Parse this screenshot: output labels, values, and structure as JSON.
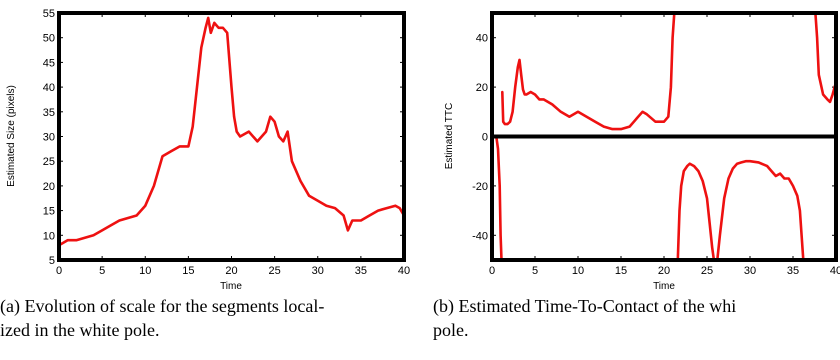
{
  "chart_data": [
    {
      "type": "line",
      "xlabel": "Time",
      "ylabel": "Estimated Size (pixels)",
      "xlim": [
        0,
        40
      ],
      "ylim": [
        5,
        55
      ],
      "xticks": [
        "0",
        "5",
        "10",
        "15",
        "20",
        "25",
        "30",
        "35",
        "40"
      ],
      "yticks": [
        "5",
        "10",
        "15",
        "20",
        "25",
        "30",
        "35",
        "40",
        "45",
        "50",
        "55"
      ],
      "grid": false,
      "series": [
        {
          "color": "#ee1111",
          "x": [
            0,
            1,
            2,
            3,
            4,
            5,
            6,
            7,
            8,
            9,
            10,
            11,
            12,
            13,
            14,
            15,
            15.5,
            16,
            16.5,
            17,
            17.3,
            17.6,
            18,
            18.5,
            19,
            19.5,
            20,
            20.3,
            20.6,
            21,
            22,
            23,
            24,
            24.5,
            25,
            25.5,
            26,
            26.5,
            27,
            28,
            29,
            30,
            31,
            32,
            33,
            33.5,
            34,
            35,
            36,
            37,
            38,
            39,
            39.5,
            40
          ],
          "y": [
            8,
            9,
            9,
            9.5,
            10,
            11,
            12,
            13,
            13.5,
            14,
            16,
            20,
            26,
            27,
            28,
            28,
            32,
            40,
            48,
            52,
            54,
            51,
            53,
            52,
            52,
            51,
            40,
            34,
            31,
            30,
            31,
            29,
            31,
            34,
            33,
            30,
            29,
            31,
            25,
            21,
            18,
            17,
            16,
            15.5,
            14,
            11,
            13,
            13,
            14,
            15,
            15.5,
            16,
            15.5,
            14
          ]
        }
      ]
    },
    {
      "type": "line",
      "xlabel": "Time",
      "ylabel": "Estimated TTC",
      "xlim": [
        0,
        40
      ],
      "ylim": [
        -50,
        50
      ],
      "xticks": [
        "0",
        "5",
        "10",
        "15",
        "20",
        "25",
        "30",
        "35",
        "40"
      ],
      "yticks": [
        "-40",
        "-20",
        "0",
        "20",
        "40"
      ],
      "grid": false,
      "series": [
        {
          "color": "#ee1111",
          "segments": [
            {
              "x": [
                0.5,
                0.7,
                0.9,
                1.0,
                1.1
              ],
              "y": [
                0,
                -5,
                -20,
                -40,
                -50
              ]
            },
            {
              "x": [
                1.2,
                1.3,
                1.5,
                1.8,
                2.1,
                2.4,
                2.7,
                3.0,
                3.2,
                3.4,
                3.6,
                3.8,
                4.0,
                4.5,
                5.0,
                5.5,
                6.0,
                6.5,
                7.0,
                8.0,
                9.0,
                9.5,
                10.0,
                11.0,
                12.0,
                13.0,
                14.0,
                15.0,
                16.0,
                16.5,
                17.0,
                17.5,
                18.0,
                19.0,
                20.0,
                20.5,
                20.8,
                21.0,
                21.2
              ],
              "y": [
                18,
                6,
                5,
                5,
                6,
                10,
                20,
                28,
                31,
                25,
                19,
                17,
                17,
                18,
                17,
                15,
                15,
                14,
                13,
                10,
                8,
                9,
                10,
                8,
                6,
                4,
                3,
                3,
                4,
                6,
                8,
                10,
                9,
                6,
                6,
                8,
                20,
                40,
                50
              ]
            },
            {
              "x": [
                21.6,
                21.8,
                22.0,
                22.3,
                22.7,
                23.0,
                23.5,
                24.0,
                24.5,
                25.0,
                25.3,
                25.6,
                25.8
              ],
              "y": [
                -50,
                -30,
                -20,
                -14,
                -12,
                -11,
                -12,
                -14,
                -18,
                -25,
                -35,
                -45,
                -50
              ]
            },
            {
              "x": [
                26.2,
                26.5,
                27.0,
                27.5,
                28.0,
                28.5,
                29.0,
                29.5,
                30.0,
                31.0,
                32.0,
                32.5,
                33.0,
                33.5,
                34.0,
                34.5,
                35.0,
                35.5,
                35.8,
                36.0,
                36.2
              ],
              "y": [
                -50,
                -40,
                -25,
                -17,
                -13,
                -11,
                -10.5,
                -10,
                -10,
                -10.5,
                -12,
                -14,
                -16,
                -15,
                -17,
                -17,
                -20,
                -24,
                -30,
                -40,
                -50
              ]
            },
            {
              "x": [
                37.6,
                37.8,
                38.0,
                38.5,
                39.0,
                39.3,
                39.6,
                40.0
              ],
              "y": [
                50,
                40,
                25,
                17,
                15,
                14,
                17,
                22
              ]
            }
          ]
        }
      ]
    }
  ],
  "captions": [
    {
      "label": "(a)",
      "line1": "Evolution of scale for the segments local-",
      "line2": "ized in the white pole."
    },
    {
      "label": "(b)",
      "line1": "Estimated Time-To-Contact of the whi",
      "line2": "pole."
    }
  ],
  "colors": {
    "series": "#ee1111",
    "axes": "#000000",
    "zero_line": "#000000"
  }
}
